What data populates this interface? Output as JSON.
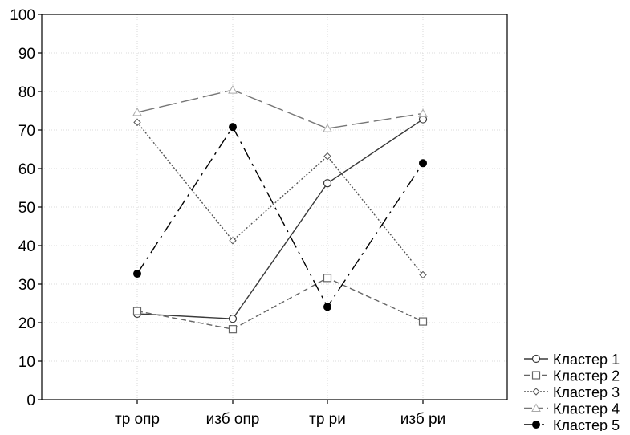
{
  "chart_data": {
    "type": "line",
    "title": "",
    "xlabel": "",
    "ylabel": "",
    "categories": [
      "тр опр",
      "изб опр",
      "тр ри",
      "изб ри"
    ],
    "ylim": [
      0,
      100
    ],
    "yticks": [
      0,
      10,
      20,
      30,
      40,
      50,
      60,
      70,
      80,
      90,
      100
    ],
    "grid": true,
    "legend_position": "bottom-right",
    "series": [
      {
        "name": "Кластер 1",
        "values": [
          22.3,
          21.0,
          56.2,
          72.8
        ],
        "marker": "circle-open",
        "dash": "solid",
        "color": "#3a3a3a"
      },
      {
        "name": "Кластер 2",
        "values": [
          23.0,
          18.3,
          31.6,
          20.3
        ],
        "marker": "square-open",
        "dash": "dashed",
        "color": "#666666"
      },
      {
        "name": "Кластер 3",
        "values": [
          72.0,
          41.3,
          63.2,
          32.4
        ],
        "marker": "diamond-open",
        "dash": "dotted",
        "color": "#555555"
      },
      {
        "name": "Кластер 4",
        "values": [
          74.6,
          80.4,
          70.4,
          74.3
        ],
        "marker": "triangle-open",
        "dash": "long-dash",
        "color": "#777777"
      },
      {
        "name": "Кластер 5",
        "values": [
          32.7,
          70.8,
          24.1,
          61.4
        ],
        "marker": "circle-filled",
        "dash": "dash-dot",
        "color": "#000000"
      }
    ]
  }
}
